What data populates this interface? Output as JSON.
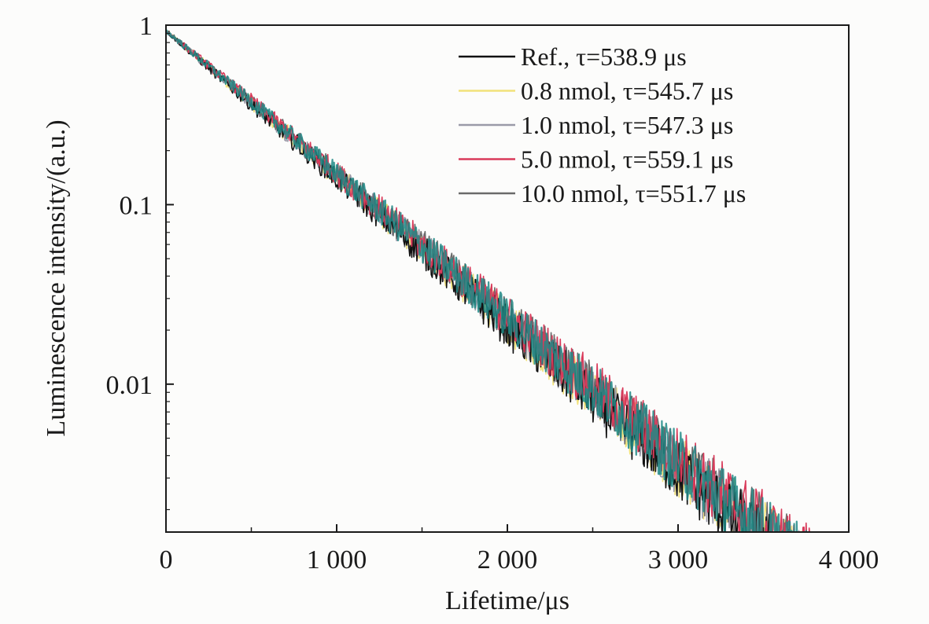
{
  "chart_data": {
    "type": "line",
    "title": "",
    "xlabel": "Lifetime/μs",
    "ylabel": "Luminescence intensity/(a.u.)",
    "xlim": [
      0,
      4000
    ],
    "ylim": [
      0.0015,
      1
    ],
    "yscale": "log",
    "grid": false,
    "legend_position": "top-right",
    "x_ticks": [
      {
        "value": 0,
        "label": "0"
      },
      {
        "value": 1000,
        "label": "1 000"
      },
      {
        "value": 2000,
        "label": "2 000"
      },
      {
        "value": 3000,
        "label": "3 000"
      },
      {
        "value": 4000,
        "label": "4 000"
      }
    ],
    "y_ticks": [
      {
        "value": 1,
        "label": "1"
      },
      {
        "value": 0.1,
        "label": "0.1"
      },
      {
        "value": 0.01,
        "label": "0.01"
      }
    ],
    "series": [
      {
        "name": "Ref.",
        "tau": "τ=538.9 μs",
        "tau_us": 538.9,
        "color": "#111111",
        "points": [
          [
            0,
            0.93
          ],
          [
            500,
            0.36
          ],
          [
            1000,
            0.14
          ],
          [
            1500,
            0.055
          ],
          [
            2000,
            0.021
          ],
          [
            2500,
            0.0083
          ],
          [
            3000,
            0.0033
          ],
          [
            3500,
            0.0013
          ]
        ]
      },
      {
        "name": "0.8 nmol",
        "tau": "τ=545.7 μs",
        "tau_us": 545.7,
        "color": "#f2e27a",
        "points": [
          [
            0,
            0.93
          ],
          [
            500,
            0.37
          ],
          [
            1000,
            0.145
          ],
          [
            1500,
            0.057
          ],
          [
            2000,
            0.022
          ],
          [
            2500,
            0.0088
          ],
          [
            3000,
            0.0035
          ],
          [
            3500,
            0.0014
          ]
        ]
      },
      {
        "name": "1.0 nmol",
        "tau": "τ=547.3 μs",
        "tau_us": 547.3,
        "color": "#9a9aa8",
        "points": [
          [
            0,
            0.93
          ],
          [
            500,
            0.37
          ],
          [
            1000,
            0.146
          ],
          [
            1500,
            0.058
          ],
          [
            2000,
            0.023
          ],
          [
            2500,
            0.009
          ],
          [
            3000,
            0.0036
          ],
          [
            3500,
            0.0014
          ]
        ]
      },
      {
        "name": "5.0 nmol",
        "tau": "τ=559.1 μs",
        "tau_us": 559.1,
        "color": "#d93a5a",
        "points": [
          [
            0,
            0.93
          ],
          [
            500,
            0.38
          ],
          [
            1000,
            0.15
          ],
          [
            1500,
            0.06
          ],
          [
            2000,
            0.024
          ],
          [
            2500,
            0.0097
          ],
          [
            3000,
            0.0039
          ],
          [
            3500,
            0.0016
          ]
        ]
      },
      {
        "name": "10.0 nmol",
        "tau": "τ=551.7 μs",
        "tau_us": 551.7,
        "color": "#6a6a6a",
        "points": [
          [
            0,
            0.93
          ],
          [
            500,
            0.375
          ],
          [
            1000,
            0.148
          ],
          [
            1500,
            0.059
          ],
          [
            2000,
            0.0235
          ],
          [
            2500,
            0.0094
          ],
          [
            3000,
            0.0037
          ],
          [
            3500,
            0.0015
          ]
        ]
      }
    ],
    "overlay_color": "#1f8a86"
  }
}
